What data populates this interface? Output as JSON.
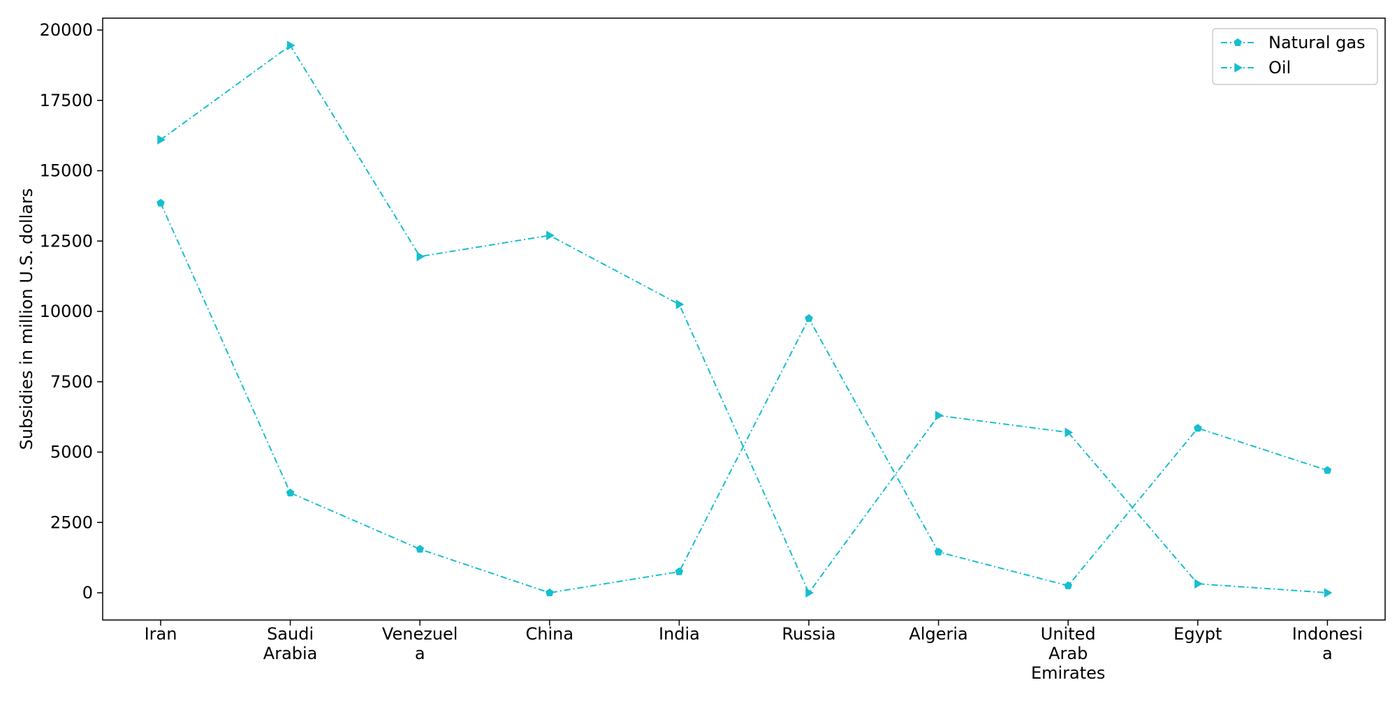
{
  "chart_data": {
    "type": "line",
    "ylabel": "Subsidies in million U.S. dollars",
    "xlabel": "",
    "categories": [
      [
        "Iran"
      ],
      [
        "Saudi",
        "Arabia"
      ],
      [
        "Venezuel",
        "a"
      ],
      [
        "China"
      ],
      [
        "India"
      ],
      [
        "Russia"
      ],
      [
        "Algeria"
      ],
      [
        "United",
        "Arab",
        "Emirates"
      ],
      [
        "Egypt"
      ],
      [
        "Indonesi",
        "a"
      ]
    ],
    "ylim": [
      -1000,
      20400
    ],
    "yticks": [
      "0",
      "2500",
      "5000",
      "7500",
      "10000",
      "12500",
      "15000",
      "17500",
      "20000"
    ],
    "ytick_values": [
      0,
      2500,
      5000,
      7500,
      10000,
      12500,
      15000,
      17500,
      20000
    ],
    "grid": false,
    "legend_position": "top-right",
    "series": [
      {
        "name": "Natural gas",
        "marker": "pentagon",
        "line_style": "dash-dot",
        "color": "#17becf",
        "values": [
          13850,
          3550,
          1550,
          0,
          750,
          9750,
          1450,
          250,
          5850,
          4350
        ]
      },
      {
        "name": "Oil",
        "marker": "triangle-right",
        "line_style": "dash-dot",
        "color": "#17becf",
        "values": [
          16100,
          19450,
          11950,
          12700,
          10250,
          0,
          6300,
          5700,
          320,
          0
        ]
      }
    ]
  }
}
